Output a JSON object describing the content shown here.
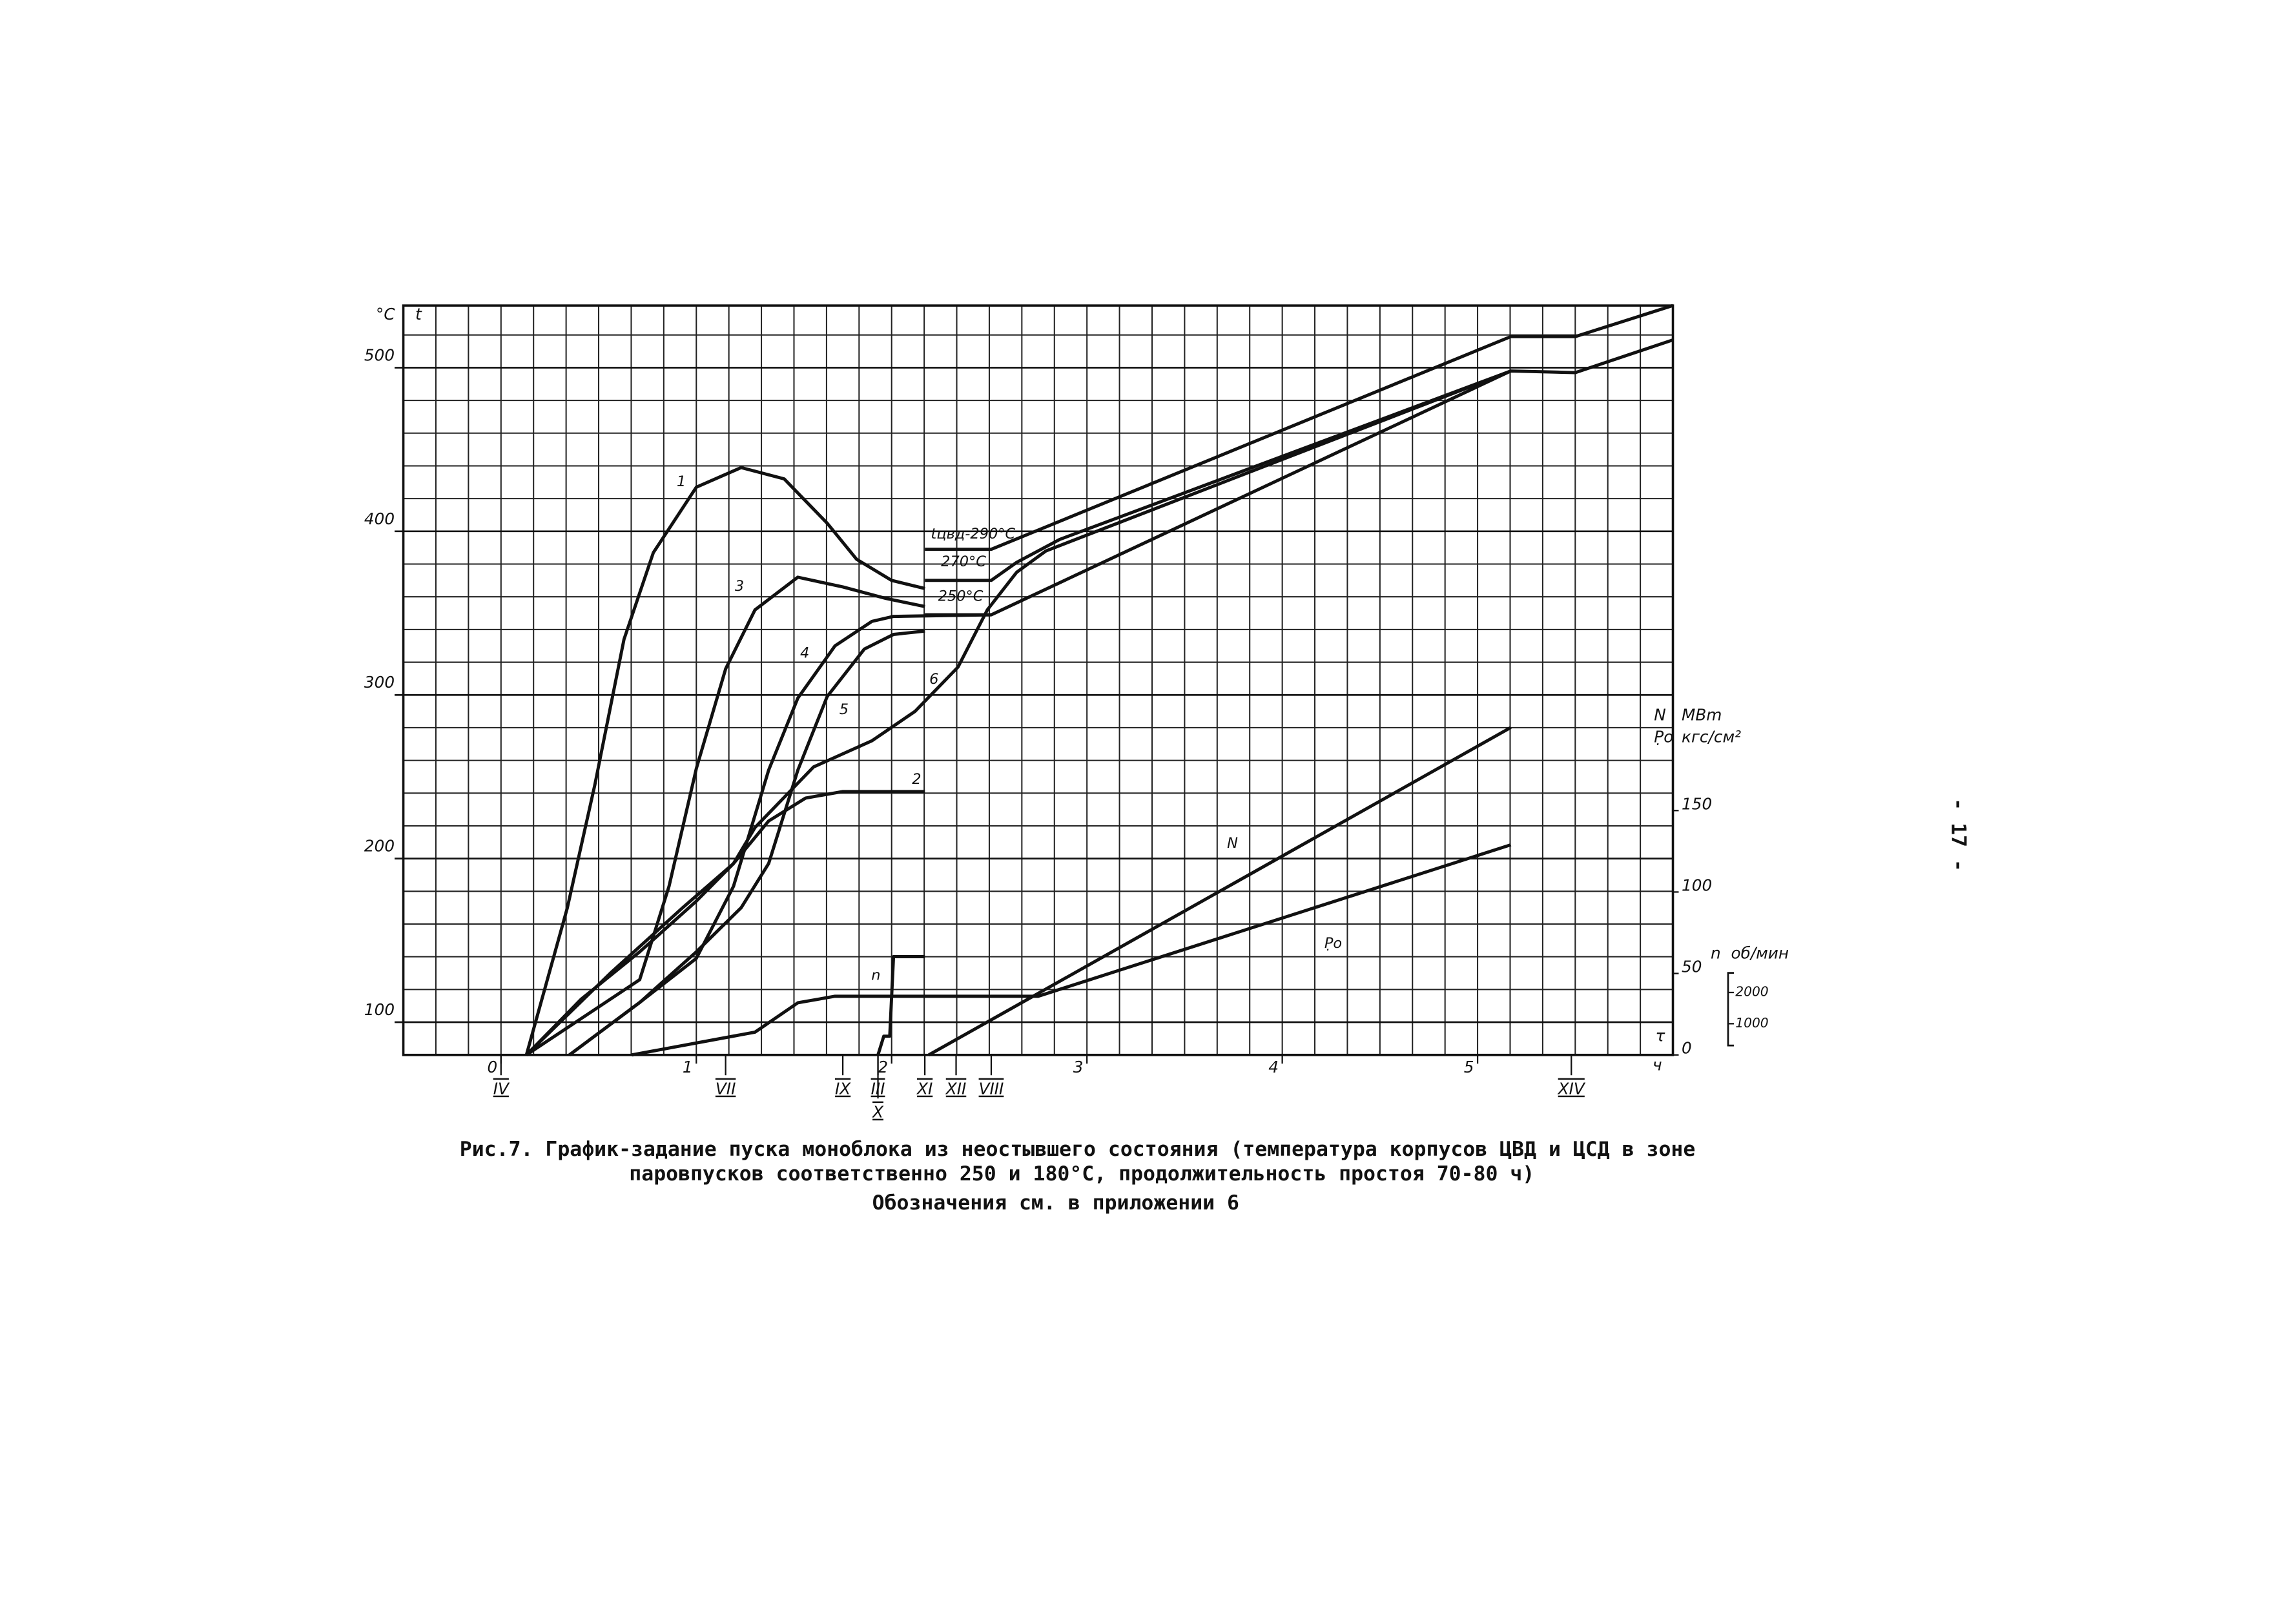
{
  "chart_data": {
    "type": "line",
    "title": "Рис.7. График-задание пуска моноблока из неостывшего состояния (температура корпусов ЦВД и ЦСД в зоне",
    "title_line2": "паровпусков соответственно 250 и 180°С, продолжительность простоя 70-80 ч)",
    "subtitle": "Обозначения см. в приложении 6",
    "page_number": "- 17 -",
    "y_unit": "°C",
    "y_label": "t",
    "x_label": "τ",
    "x_unit": "ч",
    "y2_label": "N",
    "y2_unit": "MBm",
    "y2_label_b": "P̣o",
    "y2_unit_b": "кгс/см²",
    "y3_label": "n",
    "y3_unit": "об/мин",
    "xlim": [
      -0.5,
      6.0
    ],
    "xticks": [
      0,
      1,
      2,
      3,
      4,
      5
    ],
    "ylim": [
      80,
      538
    ],
    "yticks": [
      100,
      200,
      300,
      400,
      500
    ],
    "y2lim": [
      0,
      460
    ],
    "y2ticks": [
      0,
      50,
      100,
      150
    ],
    "y3lim": [
      0,
      24000
    ],
    "y3ticks": [
      2000,
      1000
    ],
    "grid": true,
    "color": "#111111",
    "events": [
      {
        "label": "IV",
        "x": 0
      },
      {
        "label": "VII",
        "x": 1.15
      },
      {
        "label": "IX",
        "x": 1.75
      },
      {
        "label": "III",
        "x": 1.93
      },
      {
        "label": "X",
        "x": 1.93
      },
      {
        "label": "XI",
        "x": 2.17
      },
      {
        "label": "XII",
        "x": 2.33
      },
      {
        "label": "VIII",
        "x": 2.51
      },
      {
        "label": "XIV",
        "x": 5.48
      }
    ],
    "series": [
      {
        "name": "1",
        "x": [
          0.13,
          0.34,
          0.48,
          0.63,
          0.78,
          1.0,
          1.23,
          1.45,
          1.67,
          1.82,
          2.0,
          2.17
        ],
        "values": [
          80,
          170,
          245,
          334,
          387,
          427,
          439,
          432,
          405,
          383,
          370,
          365
        ]
      },
      {
        "name": "2",
        "x": [
          0.13,
          0.41,
          0.71,
          1.0,
          1.19,
          1.37,
          1.56,
          1.75,
          2.17
        ],
        "values": [
          80,
          114,
          143,
          174,
          197,
          223,
          237,
          241,
          241
        ]
      },
      {
        "name": "3",
        "x": [
          0.13,
          0.71,
          0.86,
          1.0,
          1.15,
          1.3,
          1.52,
          1.75,
          1.97,
          2.17
        ],
        "values": [
          80,
          126,
          183,
          255,
          316,
          352,
          372,
          366,
          359,
          354
        ]
      },
      {
        "name": "4",
        "x": [
          0.35,
          0.71,
          1.0,
          1.19,
          1.37,
          1.52,
          1.71,
          1.9,
          2.01,
          2.51
        ],
        "values": [
          80,
          112,
          139,
          183,
          254,
          298,
          330,
          345,
          348,
          349
        ]
      },
      {
        "name": "5",
        "x": [
          0.35,
          0.71,
          1.0,
          1.23,
          1.37,
          1.52,
          1.67,
          1.86,
          2.01,
          2.17
        ],
        "values": [
          80,
          112,
          143,
          170,
          197,
          254,
          299,
          328,
          337,
          339
        ]
      },
      {
        "name": "6",
        "x": [
          0.13,
          0.56,
          0.93,
          1.19,
          1.3,
          1.6,
          1.9,
          2.12,
          2.34,
          2.49,
          2.64,
          2.79,
          5.17
        ],
        "values": [
          80,
          130,
          170,
          197,
          219,
          256,
          272,
          290,
          317,
          352,
          375,
          388,
          498
        ]
      },
      {
        "name": "tцвд-290°C",
        "x": [
          2.17,
          2.51,
          5.17,
          5.5,
          6.0
        ],
        "values": [
          389,
          389,
          519,
          519,
          538
        ]
      },
      {
        "name": "270°C",
        "x": [
          2.17,
          2.51,
          2.64,
          2.86,
          5.17,
          5.5,
          6.0
        ],
        "values": [
          370,
          370,
          381,
          395,
          498,
          497,
          517
        ]
      },
      {
        "name": "250°C",
        "x": [
          2.17,
          2.51,
          5.17
        ],
        "values": [
          349,
          349,
          498
        ]
      },
      {
        "name": "N",
        "axis": "y2",
        "x": [
          2.19,
          5.17
        ],
        "values": [
          0,
          201
        ]
      },
      {
        "name": "P̣o",
        "axis": "y2",
        "x": [
          0.67,
          1.3,
          1.52,
          1.71,
          2.75,
          5.17
        ],
        "values": [
          0,
          14,
          32,
          36,
          36,
          129
        ]
      },
      {
        "name": "n",
        "axis": "y3",
        "x": [
          1.93,
          1.96,
          1.99,
          2.01,
          2.04,
          2.17
        ],
        "values": [
          0,
          600,
          600,
          3150,
          3150,
          3150
        ]
      }
    ]
  }
}
